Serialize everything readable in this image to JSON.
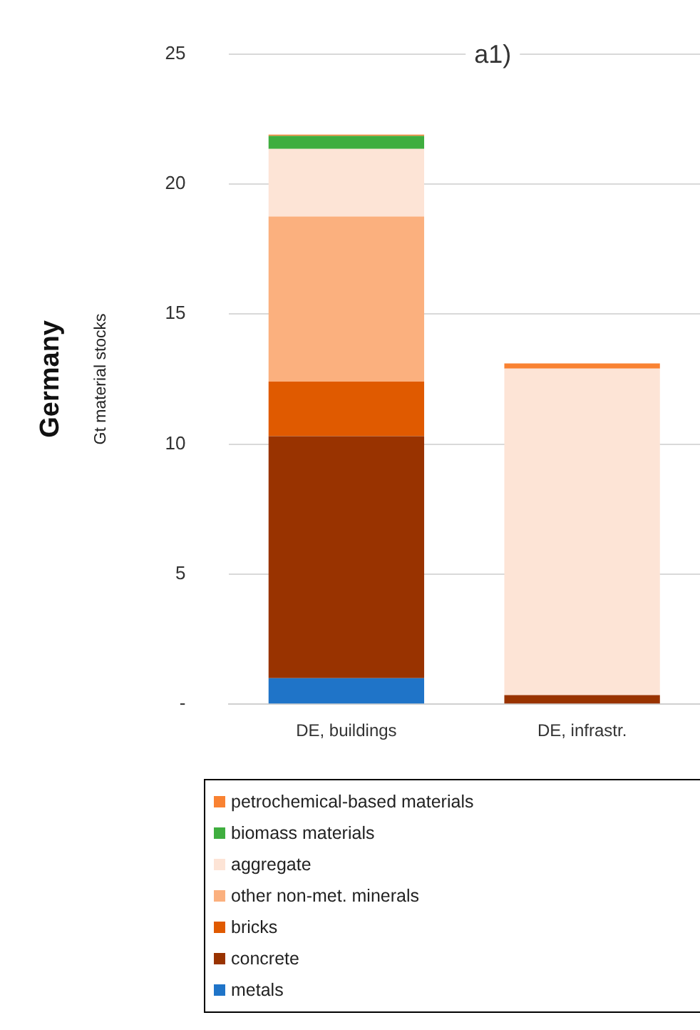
{
  "chart_data": {
    "type": "bar",
    "title": "a1)",
    "ylabel": "Gt material stocks",
    "annotations": [
      "Germany"
    ],
    "categories": [
      "DE, buildings",
      "DE, infrastr."
    ],
    "stacked": true,
    "ylim": [
      0,
      25
    ],
    "yticks": [
      {
        "value": 0,
        "label": "-"
      },
      5,
      10,
      15,
      20,
      25
    ],
    "grid": "y",
    "legend": "bottom",
    "series": [
      {
        "name": "metals",
        "color": "#1f74c8",
        "values": [
          1.0,
          0
        ]
      },
      {
        "name": "concrete",
        "color": "#993300",
        "values": [
          9.3,
          0.35
        ]
      },
      {
        "name": "bricks",
        "color": "#e05a00",
        "values": [
          2.1,
          0
        ]
      },
      {
        "name": "other non-met. minerals",
        "color": "#fbb07e",
        "values": [
          6.35,
          0
        ]
      },
      {
        "name": "aggregate",
        "color": "#fde4d6",
        "values": [
          2.6,
          12.55
        ]
      },
      {
        "name": "biomass materials",
        "color": "#3fae3f",
        "values": [
          0.5,
          0
        ]
      },
      {
        "name": "petrochemical-based materials",
        "color": "#f98232",
        "values": [
          0.05,
          0.2
        ]
      }
    ]
  }
}
